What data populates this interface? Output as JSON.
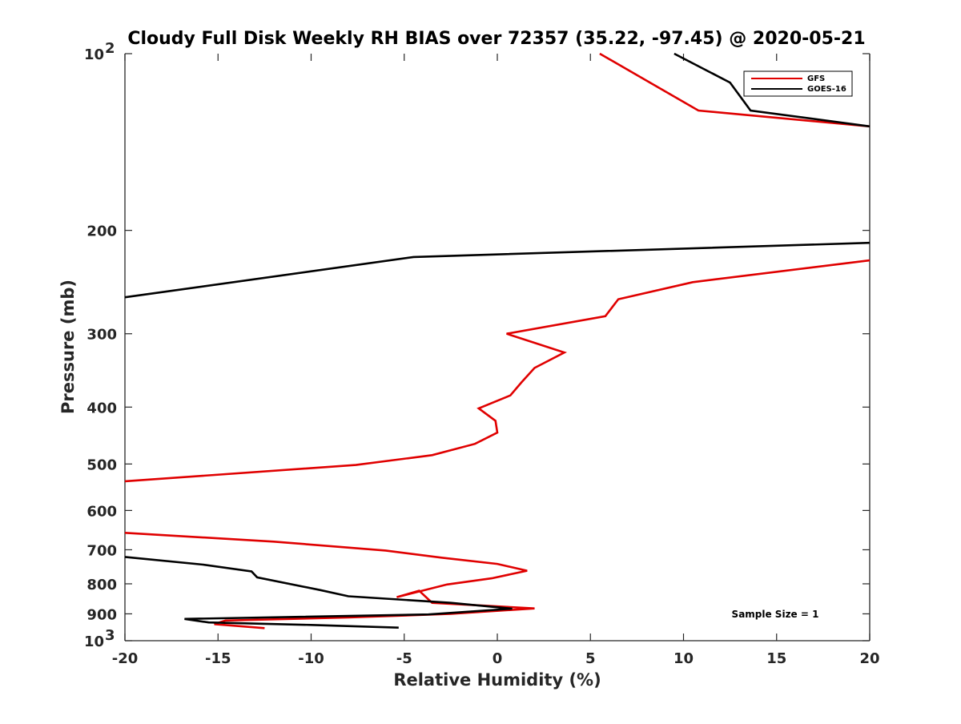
{
  "chart_data": {
    "type": "line",
    "title": "Cloudy Full Disk Weekly RH BIAS over 72357 (35.22, -97.45) @ 2020-05-21",
    "xlabel": "Relative Humidity (%)",
    "ylabel": "Pressure (mb)",
    "xlim": [
      -20,
      20
    ],
    "ylim": [
      100,
      1000
    ],
    "yscale": "log",
    "y_direction": "reversed",
    "grid": false,
    "legend_position": "top-right",
    "x_ticks": [
      {
        "value": -20,
        "label": "-20"
      },
      {
        "value": -15,
        "label": "-15"
      },
      {
        "value": -10,
        "label": "-10"
      },
      {
        "value": -5,
        "label": "-5"
      },
      {
        "value": 0,
        "label": "0"
      },
      {
        "value": 5,
        "label": "5"
      },
      {
        "value": 10,
        "label": "10"
      },
      {
        "value": 15,
        "label": "15"
      },
      {
        "value": 20,
        "label": "20"
      }
    ],
    "y_ticks": [
      {
        "value": 100,
        "label": "10",
        "exponent": "2"
      },
      {
        "value": 200,
        "label": "200",
        "exponent": ""
      },
      {
        "value": 300,
        "label": "300",
        "exponent": ""
      },
      {
        "value": 400,
        "label": "400",
        "exponent": ""
      },
      {
        "value": 500,
        "label": "500",
        "exponent": ""
      },
      {
        "value": 600,
        "label": "600",
        "exponent": ""
      },
      {
        "value": 700,
        "label": "700",
        "exponent": ""
      },
      {
        "value": 800,
        "label": "800",
        "exponent": ""
      },
      {
        "value": 900,
        "label": "900",
        "exponent": ""
      },
      {
        "value": 1000,
        "label": "10",
        "exponent": "3"
      }
    ],
    "series": [
      {
        "name": "GFS",
        "color": "#e00000",
        "points": [
          [
            5.5,
            100
          ],
          [
            8.2,
            112
          ],
          [
            10.8,
            125
          ],
          [
            20,
            133
          ],
          [
            null,
            150
          ],
          [
            null,
            175
          ],
          [
            20,
            225
          ],
          [
            10.5,
            245
          ],
          [
            6.5,
            262
          ],
          [
            5.8,
            280
          ],
          [
            0.5,
            300
          ],
          [
            3.6,
            323
          ],
          [
            2.0,
            343
          ],
          [
            1.3,
            363
          ],
          [
            0.7,
            382
          ],
          [
            -1.0,
            402
          ],
          [
            -0.1,
            422
          ],
          [
            0.0,
            442
          ],
          [
            -1.2,
            462
          ],
          [
            -3.5,
            483
          ],
          [
            -7.6,
            502
          ],
          [
            -20,
            535
          ],
          [
            null,
            560
          ],
          [
            null,
            625
          ],
          [
            -20,
            655
          ],
          [
            -12,
            678
          ],
          [
            -6,
            702
          ],
          [
            -3,
            722
          ],
          [
            0,
            740
          ],
          [
            1.6,
            760
          ],
          [
            -0.3,
            783
          ],
          [
            -2.7,
            802
          ],
          [
            -5.4,
            843
          ],
          [
            -4.2,
            822
          ],
          [
            -3.5,
            862
          ],
          [
            2.0,
            881
          ],
          [
            -2.5,
            900
          ],
          [
            -8.0,
            913
          ],
          [
            -14.6,
            924
          ],
          [
            -15.2,
            937
          ],
          [
            -12.5,
            952
          ]
        ]
      },
      {
        "name": "GOES-16",
        "color": "#000000",
        "points": [
          [
            9.5,
            100
          ],
          [
            12.5,
            112
          ],
          [
            13.6,
            125
          ],
          [
            20,
            133
          ],
          [
            null,
            150
          ],
          [
            null,
            175
          ],
          [
            20,
            210
          ],
          [
            -4.5,
            222
          ],
          [
            -20,
            260
          ],
          [
            null,
            300
          ],
          [
            null,
            400
          ],
          [
            null,
            500
          ],
          [
            null,
            600
          ],
          [
            null,
            690
          ],
          [
            -20,
            720
          ],
          [
            -15.8,
            742
          ],
          [
            -13.2,
            762
          ],
          [
            -12.9,
            780
          ],
          [
            -9.5,
            820
          ],
          [
            -8.0,
            840
          ],
          [
            -2.5,
            862
          ],
          [
            0.8,
            882
          ],
          [
            -3.7,
            902
          ],
          [
            -16.8,
            918
          ],
          [
            -15.5,
            931
          ],
          [
            -10,
            940
          ],
          [
            -5.3,
            950
          ]
        ]
      }
    ],
    "annotations": [
      {
        "text": "Sample Size = 1"
      }
    ]
  }
}
